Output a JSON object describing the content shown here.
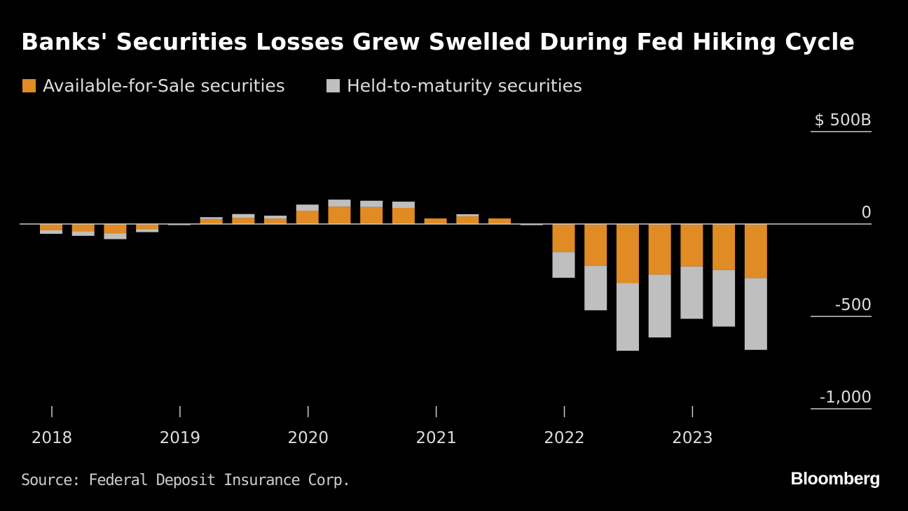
{
  "title": "Banks' Securities Losses Grew Swelled During Fed Hiking Cycle",
  "source": "Source: Federal Deposit Insurance Corp.",
  "brand": "Bloomberg",
  "colors": {
    "afs": "#e08b23",
    "htm": "#bfbfbf",
    "background": "#000000"
  },
  "chart_data": {
    "type": "bar",
    "stacked": true,
    "title": "Banks' Securities Losses Grew Swelled During Fed Hiking Cycle",
    "ylabel": "",
    "xlabel": "",
    "unit": "$ billions",
    "ylim": [
      -1000,
      500
    ],
    "yticks": [
      500,
      0,
      -500,
      -1000
    ],
    "ytick_labels": [
      "$ 500B",
      "0",
      "-500",
      "-1,000"
    ],
    "xtick_labels": [
      "2018",
      "2019",
      "2020",
      "2021",
      "2022",
      "2023"
    ],
    "legend_position": "top-left",
    "grid": false,
    "categories": [
      "2018Q1",
      "2018Q2",
      "2018Q3",
      "2018Q4",
      "2019Q1",
      "2019Q2",
      "2019Q3",
      "2019Q4",
      "2020Q1",
      "2020Q2",
      "2020Q3",
      "2020Q4",
      "2021Q1",
      "2021Q2",
      "2021Q3",
      "2021Q4",
      "2022Q1",
      "2022Q2",
      "2022Q3",
      "2022Q4",
      "2023Q1",
      "2023Q2",
      "2023Q3"
    ],
    "series": [
      {
        "name": "Available-for-Sale securities",
        "values": [
          -34,
          -40,
          -51,
          -28,
          -2,
          27,
          33,
          29,
          72,
          94,
          92,
          87,
          30,
          42,
          30,
          -2,
          -152,
          -226,
          -320,
          -274,
          -230,
          -249,
          -293
        ]
      },
      {
        "name": "Held-to-maturity securities",
        "values": [
          -19,
          -24,
          -31,
          -16,
          -1,
          10,
          21,
          16,
          33,
          38,
          34,
          34,
          0,
          11,
          0,
          -4,
          -139,
          -241,
          -366,
          -340,
          -283,
          -306,
          -388
        ]
      }
    ]
  }
}
